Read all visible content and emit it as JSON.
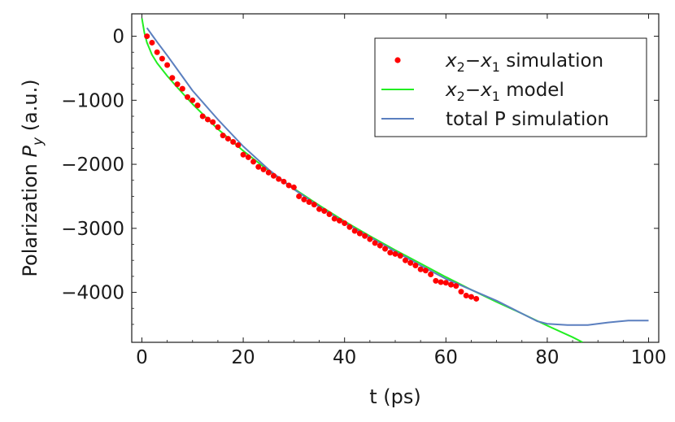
{
  "chart_data": {
    "type": "line",
    "xlabel": "t (ps)",
    "ylabel": "Polarization P_y (a.u.)",
    "ylabel_parts": {
      "prefix": "Polarization ",
      "symbol": "P",
      "subscript": "y",
      "suffix": " (a.u.)"
    },
    "xlim": [
      -2,
      102
    ],
    "ylim": [
      -4780,
      350
    ],
    "xticks": [
      0,
      20,
      40,
      60,
      80,
      100
    ],
    "yticks": [
      0,
      -1000,
      -2000,
      -3000,
      -4000
    ],
    "xtick_labels": [
      "0",
      "20",
      "40",
      "60",
      "80",
      "100"
    ],
    "ytick_labels": [
      "0",
      "−1000",
      "−2000",
      "−3000",
      "−4000"
    ],
    "grid": false,
    "legend_position": "top-right",
    "series": [
      {
        "name": "x2−x1 simulation",
        "name_parts": {
          "a": "x",
          "a_sub": "2",
          "op": "−",
          "b": "x",
          "b_sub": "1",
          "rest": " simulation"
        },
        "style": "points",
        "color": "#ff0000",
        "x": [
          1,
          2,
          3,
          4,
          5,
          6,
          7,
          8,
          9,
          10,
          11,
          12,
          13,
          14,
          15,
          16,
          17,
          18,
          19,
          20,
          21,
          22,
          23,
          24,
          25,
          26,
          27,
          28,
          29,
          30,
          31,
          32,
          33,
          34,
          35,
          36,
          37,
          38,
          39,
          40,
          41,
          42,
          43,
          44,
          45,
          46,
          47,
          48,
          49,
          50,
          51,
          52,
          53,
          54,
          55,
          56,
          57,
          58,
          59,
          60,
          61,
          62,
          63,
          64,
          65,
          66
        ],
        "y": [
          0,
          -100,
          -250,
          -350,
          -450,
          -650,
          -750,
          -820,
          -950,
          -1000,
          -1080,
          -1250,
          -1300,
          -1340,
          -1420,
          -1550,
          -1600,
          -1650,
          -1700,
          -1850,
          -1890,
          -1960,
          -2040,
          -2080,
          -2130,
          -2180,
          -2230,
          -2270,
          -2330,
          -2360,
          -2500,
          -2550,
          -2590,
          -2630,
          -2700,
          -2730,
          -2780,
          -2850,
          -2880,
          -2920,
          -2980,
          -3040,
          -3080,
          -3120,
          -3170,
          -3230,
          -3270,
          -3320,
          -3380,
          -3400,
          -3430,
          -3500,
          -3540,
          -3580,
          -3640,
          -3660,
          -3720,
          -3820,
          -3840,
          -3850,
          -3880,
          -3900,
          -3990,
          -4050,
          -4070,
          -4100
        ]
      },
      {
        "name": "x2−x1 model",
        "name_parts": {
          "a": "x",
          "a_sub": "2",
          "op": "−",
          "b": "x",
          "b_sub": "1",
          "rest": " model"
        },
        "style": "line",
        "color": "#22ee22",
        "x": [
          0,
          0.5,
          1,
          2,
          3,
          5,
          7,
          10,
          15,
          20,
          25,
          30,
          35,
          40,
          45,
          50,
          55,
          60,
          65,
          70,
          75,
          80,
          85,
          87
        ],
        "y": [
          280,
          50,
          -100,
          -290,
          -420,
          -620,
          -800,
          -1060,
          -1450,
          -1790,
          -2100,
          -2380,
          -2640,
          -2890,
          -3120,
          -3340,
          -3550,
          -3760,
          -3960,
          -4150,
          -4330,
          -4520,
          -4700,
          -4780
        ]
      },
      {
        "name": "total P simulation",
        "style": "line",
        "color": "#5b7fbf",
        "x": [
          1,
          2,
          3,
          5,
          7,
          10,
          15,
          20,
          25,
          30,
          35,
          40,
          45,
          50,
          55,
          60,
          65,
          70,
          75,
          78,
          80,
          84,
          88,
          92,
          96,
          100
        ],
        "y": [
          130,
          20,
          -90,
          -300,
          -520,
          -850,
          -1300,
          -1720,
          -2080,
          -2390,
          -2660,
          -2910,
          -3140,
          -3360,
          -3580,
          -3790,
          -3960,
          -4130,
          -4330,
          -4450,
          -4490,
          -4510,
          -4510,
          -4470,
          -4440,
          -4440
        ]
      }
    ]
  }
}
